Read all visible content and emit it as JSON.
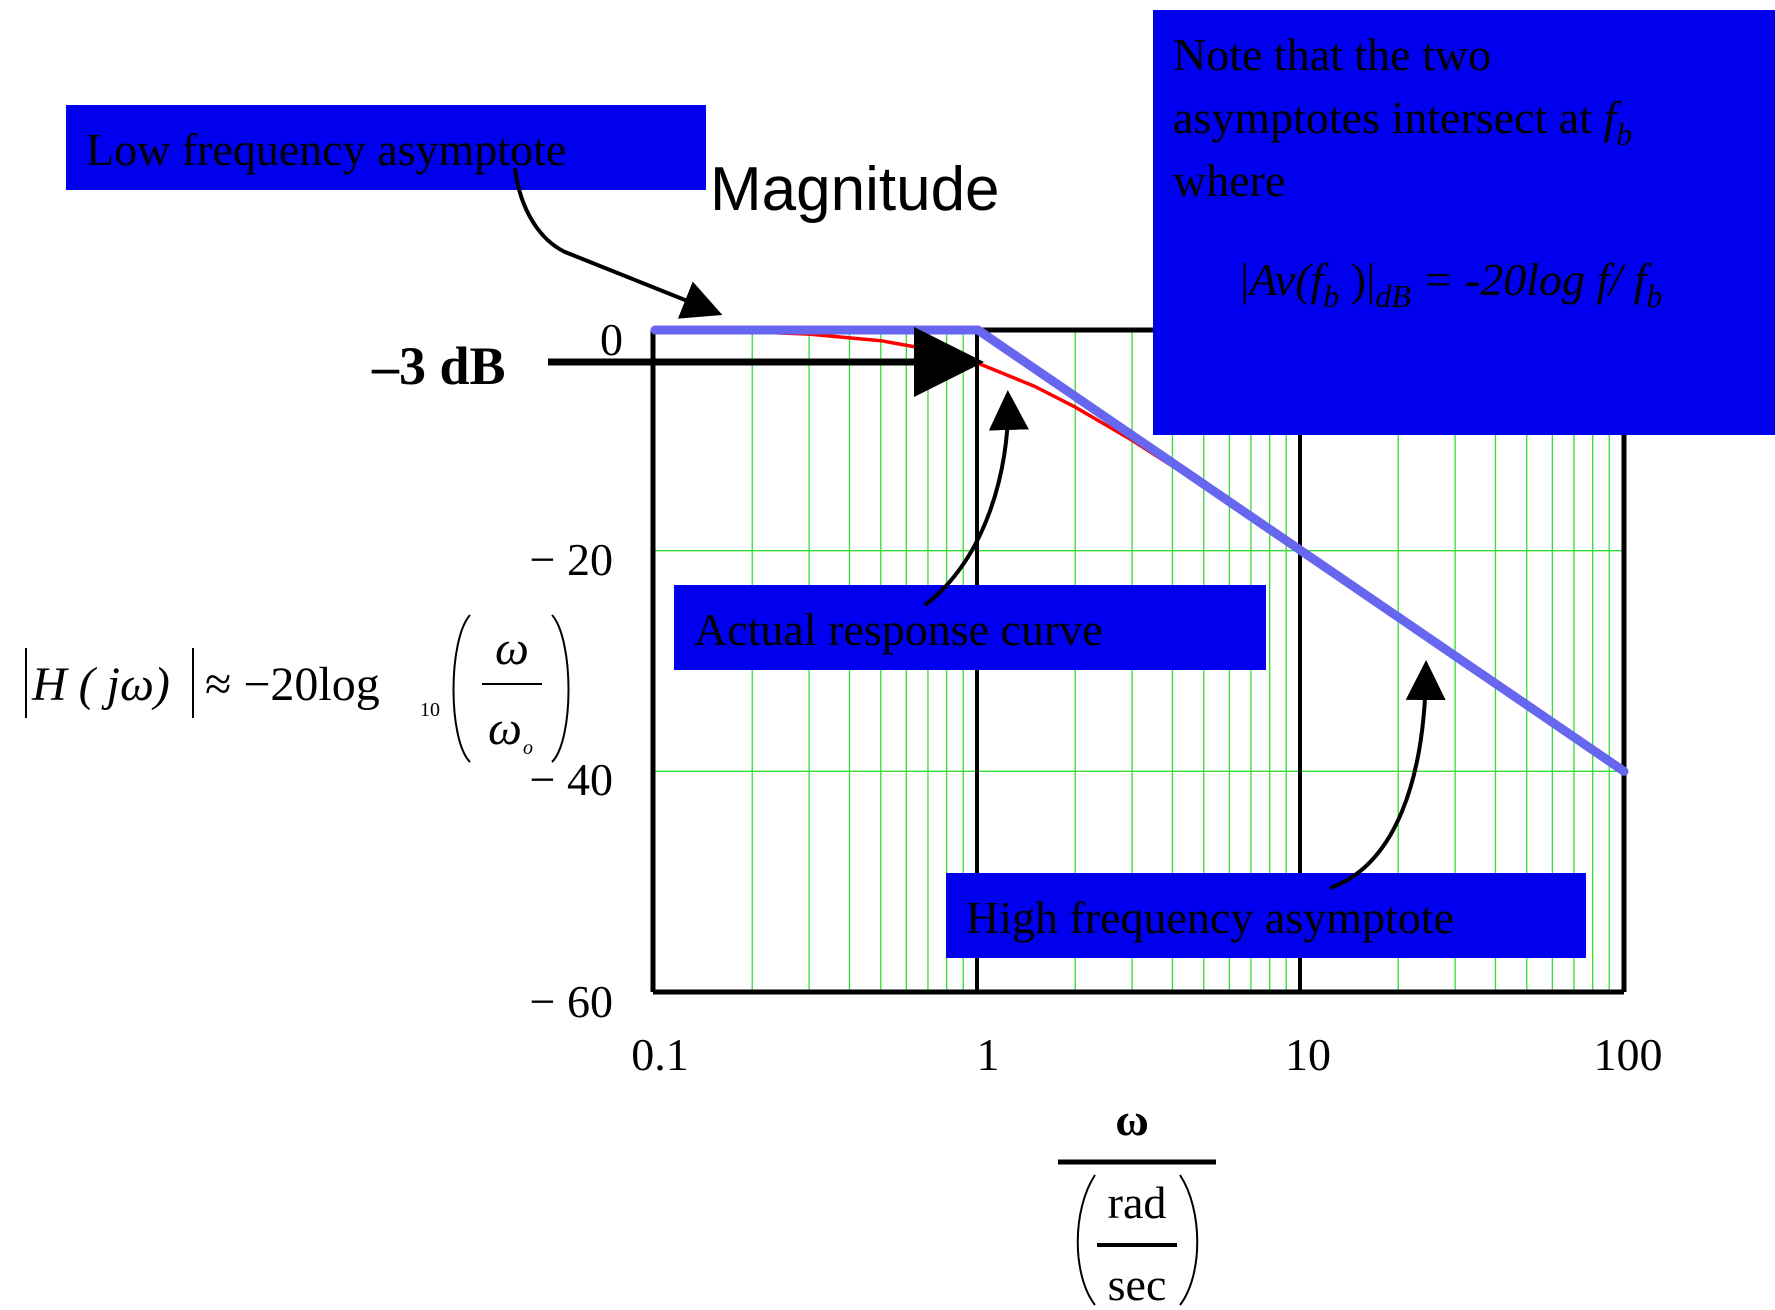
{
  "chart_data": {
    "type": "line",
    "title": "Magnitude",
    "xscale": "log",
    "xlim": [
      0.1,
      100
    ],
    "ylim": [
      -60,
      0
    ],
    "grid": true,
    "x_ticks": [
      "0.1",
      "1",
      "10",
      "100"
    ],
    "y_ticks": [
      "0",
      "− 20",
      "− 40",
      "− 60"
    ],
    "ylabel": {
      "lhs": "H ( jω)",
      "approx": "≈ −20log",
      "sub": "10",
      "num": "ω",
      "den": "ω",
      "den_sub": "o"
    },
    "xlabel": {
      "num": "ω",
      "den_num": "rad",
      "den_den": "sec"
    },
    "series": [
      {
        "name": "Actual response curve",
        "color": "#ff0000",
        "x": [
          0.1,
          0.2,
          0.3,
          0.5,
          0.7,
          1,
          1.5,
          2,
          3,
          5,
          10,
          20,
          50,
          100
        ],
        "y": [
          0,
          -0.17,
          -0.37,
          -0.97,
          -1.74,
          -3.01,
          -5.12,
          -6.99,
          -10.0,
          -14.15,
          -20.04,
          -26.03,
          -33.98,
          -40.0
        ]
      },
      {
        "name": "Low frequency asymptote",
        "color": "#6666ee",
        "x": [
          0.1,
          1
        ],
        "y": [
          0,
          0
        ]
      },
      {
        "name": "High frequency asymptote",
        "color": "#6666ee",
        "x": [
          1,
          100
        ],
        "y": [
          0,
          -40
        ]
      }
    ]
  },
  "annotations": {
    "minus3db": "–3 dB",
    "low_freq": "Low frequency asymptote",
    "actual": "Actual response curve",
    "high_freq": "High frequency asymptote",
    "note_line1": "Note that the two",
    "note_line2": "asymptotes intersect at ",
    "note_line2_f": "f",
    "note_line2_sub": "b",
    "note_line3": "where",
    "formula_bar1": "|",
    "formula_av": "Av(",
    "formula_f": "f",
    "formula_b": "b",
    "formula_close": " )|",
    "formula_db": "dB",
    "formula_rhs": " = -20log f/ f",
    "formula_rhs_sub": "b"
  },
  "colors": {
    "box_fill": "#0000ee",
    "grid": "#33dd33",
    "actual": "#ff0000",
    "asymptote": "#6666ee"
  }
}
